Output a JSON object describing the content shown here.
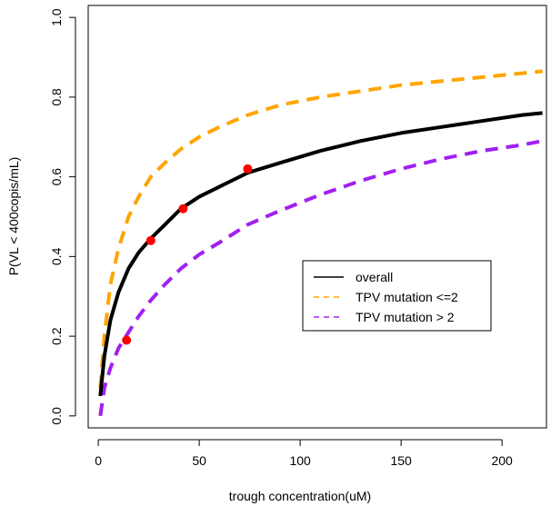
{
  "chart_data": {
    "type": "line",
    "title": "",
    "xlabel": "trough concentration(uM)",
    "ylabel": "P(VL < 400copis/mL)",
    "xlim": [
      -5,
      222
    ],
    "ylim": [
      -0.03,
      1.03
    ],
    "x_ticks": [
      0,
      50,
      100,
      150,
      200
    ],
    "y_ticks": [
      0.0,
      0.2,
      0.4,
      0.6,
      0.8,
      1.0
    ],
    "x_tick_labels": [
      "0",
      "50",
      "100",
      "150",
      "200"
    ],
    "y_tick_labels": [
      "0.0",
      "0.2",
      "0.4",
      "0.6",
      "0.8",
      "1.0"
    ],
    "grid": false,
    "legend_position": "center-right",
    "series": [
      {
        "name": "overall",
        "style": "solid",
        "color": "#000000",
        "x": [
          1,
          3,
          6,
          10,
          15,
          20,
          26,
          33,
          41,
          50,
          60,
          74,
          90,
          110,
          130,
          150,
          170,
          190,
          210,
          220
        ],
        "y": [
          0.05,
          0.15,
          0.24,
          0.31,
          0.37,
          0.41,
          0.445,
          0.48,
          0.52,
          0.55,
          0.575,
          0.61,
          0.635,
          0.665,
          0.69,
          0.71,
          0.725,
          0.74,
          0.755,
          0.76
        ]
      },
      {
        "name": "TPV mutation <=2",
        "style": "dashed",
        "color": "#FFA500",
        "x": [
          1,
          3,
          6,
          10,
          15,
          20,
          26,
          33,
          41,
          50,
          60,
          74,
          90,
          110,
          130,
          150,
          170,
          190,
          210,
          220
        ],
        "y": [
          0.07,
          0.2,
          0.33,
          0.42,
          0.5,
          0.55,
          0.6,
          0.635,
          0.67,
          0.7,
          0.725,
          0.755,
          0.78,
          0.8,
          0.815,
          0.83,
          0.84,
          0.85,
          0.86,
          0.865
        ]
      },
      {
        "name": "TPV mutation > 2",
        "style": "dashed",
        "color": "#A020F0",
        "x": [
          1,
          3,
          6,
          10,
          15,
          20,
          26,
          33,
          41,
          50,
          60,
          74,
          90,
          110,
          130,
          150,
          170,
          190,
          210,
          220
        ],
        "y": [
          0.0,
          0.07,
          0.12,
          0.17,
          0.21,
          0.25,
          0.29,
          0.33,
          0.37,
          0.405,
          0.435,
          0.48,
          0.515,
          0.555,
          0.59,
          0.62,
          0.645,
          0.665,
          0.68,
          0.69
        ]
      }
    ],
    "points": {
      "color": "#FF0000",
      "x": [
        14,
        26,
        42,
        74
      ],
      "y": [
        0.19,
        0.44,
        0.52,
        0.62
      ]
    },
    "legend": [
      "overall",
      "TPV mutation <=2",
      "TPV mutation > 2"
    ]
  }
}
